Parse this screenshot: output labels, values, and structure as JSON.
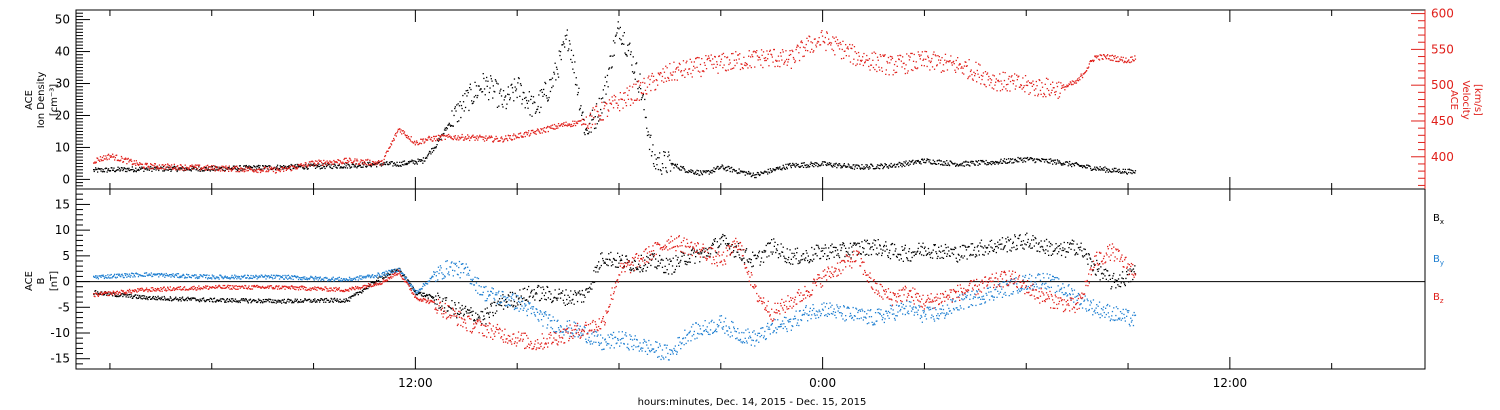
{
  "chart_data": [
    {
      "type": "scatter",
      "panel": "top",
      "ylabel_left": [
        "ACE",
        "Ion Density",
        "[cm⁻³]"
      ],
      "ylabel_right": [
        "ACE",
        "Velocity",
        "[km/s]"
      ],
      "ylim_left": [
        -3,
        53
      ],
      "ylim_right": [
        355,
        605
      ],
      "yticks_left": [
        0,
        10,
        20,
        30,
        40,
        50
      ],
      "yticks_right": [
        400,
        450,
        500,
        550,
        600
      ],
      "grid": false,
      "colors": {
        "density": "#000000",
        "velocity": "#e0201b"
      },
      "series": [
        {
          "axis": "left",
          "x": [
            2.5,
            4,
            6,
            8,
            10,
            11,
            11.5,
            12.2,
            12.6,
            13,
            13.5,
            14,
            14.3,
            14.6,
            15,
            15.5,
            16,
            16.5,
            17,
            17.3,
            17.5,
            17.8,
            18,
            18.3,
            18.6,
            19,
            19.5,
            20,
            20.5,
            21,
            22,
            23,
            24,
            25,
            26,
            27,
            28,
            29,
            30,
            31,
            31.8,
            32.5,
            33.2
          ],
          "y": [
            3,
            3.5,
            3.5,
            4,
            4.5,
            5,
            5,
            6,
            11,
            18,
            25,
            30,
            28,
            24,
            29,
            22,
            30,
            45,
            15,
            20,
            25,
            40,
            48,
            40,
            30,
            6,
            5,
            3,
            2,
            4,
            1.5,
            4.5,
            5,
            4,
            4.5,
            6,
            5,
            5.5,
            6.5,
            5.5,
            4,
            3,
            2.5
          ]
        },
        {
          "axis": "right",
          "x": [
            2.5,
            3,
            4,
            6,
            8,
            9,
            10,
            11,
            11.5,
            12,
            12.3,
            12.8,
            13.5,
            14.5,
            15.5,
            16.3,
            17,
            18,
            19,
            19.5,
            20.5,
            21.5,
            22.5,
            23,
            23.5,
            24,
            25,
            26,
            27,
            28,
            28.5,
            29,
            30,
            30.3,
            31,
            31.5,
            32,
            32.4,
            33,
            33.2
          ],
          "y": [
            395,
            402,
            388,
            385,
            382,
            392,
            395,
            392,
            440,
            420,
            425,
            428,
            428,
            425,
            435,
            445,
            450,
            478,
            505,
            518,
            528,
            535,
            540,
            535,
            555,
            565,
            540,
            528,
            535,
            528,
            520,
            508,
            500,
            498,
            496,
            506,
            540,
            540,
            535,
            540
          ]
        }
      ]
    },
    {
      "type": "scatter",
      "panel": "bottom",
      "ylabel": [
        "ACE",
        "B",
        "[nT]"
      ],
      "ylim": [
        -17,
        18
      ],
      "yticks": [
        -15,
        -10,
        -5,
        0,
        5,
        10,
        15
      ],
      "zero_line": true,
      "xlabel": "hours:minutes, Dec. 14, 2015 - Dec. 15, 2015",
      "xticks": [
        12,
        24,
        36
      ],
      "xtick_labels": [
        "12:00",
        "0:00",
        "12:00"
      ],
      "xlim": [
        2,
        41.75
      ],
      "legend_position": "right",
      "series": [
        {
          "name": "Bx",
          "label_main": "B",
          "label_sub": "x",
          "color": "#000000",
          "x": [
            2.5,
            4,
            6,
            8,
            10,
            11,
            11.5,
            12,
            12.5,
            13,
            13.5,
            14,
            14.5,
            15,
            15.5,
            16,
            16.5,
            17,
            17.5,
            18,
            18.5,
            19,
            19.5,
            20,
            20.5,
            21,
            21.5,
            22,
            22.5,
            23,
            23.5,
            24,
            24.5,
            25,
            25.5,
            26,
            26.5,
            27,
            27.5,
            28,
            28.5,
            29,
            29.5,
            30,
            30.5,
            31,
            31.5,
            32,
            32.5,
            33,
            33.2
          ],
          "y": [
            -2,
            -3,
            -3.5,
            -3.7,
            -3.5,
            1,
            2.5,
            -2,
            -3,
            -5,
            -6,
            -7,
            -4,
            -3,
            -2,
            -2.5,
            -3,
            -2.5,
            5,
            4,
            3.5,
            4,
            3,
            5,
            5.5,
            8,
            6,
            4,
            7,
            5,
            5,
            6,
            6,
            6.5,
            7,
            6,
            5.5,
            6.5,
            6,
            5.5,
            6.5,
            7,
            7.5,
            8,
            7,
            6,
            7,
            3,
            0,
            1,
            2
          ]
        },
        {
          "name": "By",
          "label_main": "B",
          "label_sub": "y",
          "color": "#1f7fd1",
          "x": [
            2.5,
            4,
            6,
            8,
            10,
            11,
            11.5,
            12,
            12.5,
            13,
            13.5,
            14,
            14.5,
            15,
            15.5,
            16,
            16.5,
            17,
            17.5,
            18,
            18.5,
            19,
            19.5,
            20,
            20.5,
            21,
            21.5,
            22,
            22.5,
            23,
            23.5,
            24,
            24.5,
            25,
            25.5,
            26,
            26.5,
            27,
            27.5,
            28,
            28.5,
            29,
            29.5,
            30,
            30.5,
            31,
            31.5,
            32,
            32.5,
            33,
            33.2
          ],
          "y": [
            1,
            1.5,
            1,
            1,
            0.5,
            1.5,
            2.5,
            -2,
            1,
            3,
            2,
            -2,
            -3,
            -4,
            -6,
            -8,
            -9,
            -10,
            -12,
            -11,
            -12,
            -13,
            -14,
            -10,
            -9,
            -8,
            -10,
            -11,
            -9,
            -8,
            -6,
            -5,
            -6,
            -6.5,
            -7,
            -6,
            -5,
            -6.5,
            -6,
            -4,
            -3,
            -2,
            -1,
            0,
            0.5,
            -1,
            -3,
            -5,
            -6,
            -7,
            -7.5
          ]
        },
        {
          "name": "Bz",
          "label_main": "B",
          "label_sub": "z",
          "color": "#e0201b",
          "x": [
            2.5,
            4,
            6,
            8,
            10,
            11,
            11.5,
            12,
            12.5,
            13,
            13.5,
            14,
            14.5,
            15,
            15.5,
            16,
            16.5,
            17,
            17.5,
            18,
            18.5,
            19,
            19.5,
            20,
            20.5,
            21,
            21.5,
            22,
            22.5,
            23,
            23.5,
            24,
            24.5,
            25,
            25.5,
            26,
            26.5,
            27,
            27.5,
            28,
            28.5,
            29,
            29.5,
            30,
            30.5,
            31,
            31.5,
            32,
            32.5,
            33,
            33.2
          ],
          "y": [
            -2.5,
            -1.5,
            -1,
            -1,
            -1.5,
            0,
            2,
            -3,
            -4,
            -6,
            -8,
            -9,
            -10,
            -11,
            -12,
            -11,
            -10,
            -9,
            -8,
            2,
            4,
            6,
            8,
            7,
            6,
            4,
            8,
            -2,
            -6,
            -4,
            -2,
            1,
            3,
            5,
            -1,
            -3,
            -2,
            -4,
            -3,
            -2,
            -1,
            0,
            1,
            -1,
            -3,
            -4,
            -5,
            4,
            6,
            3,
            2
          ]
        }
      ]
    }
  ]
}
